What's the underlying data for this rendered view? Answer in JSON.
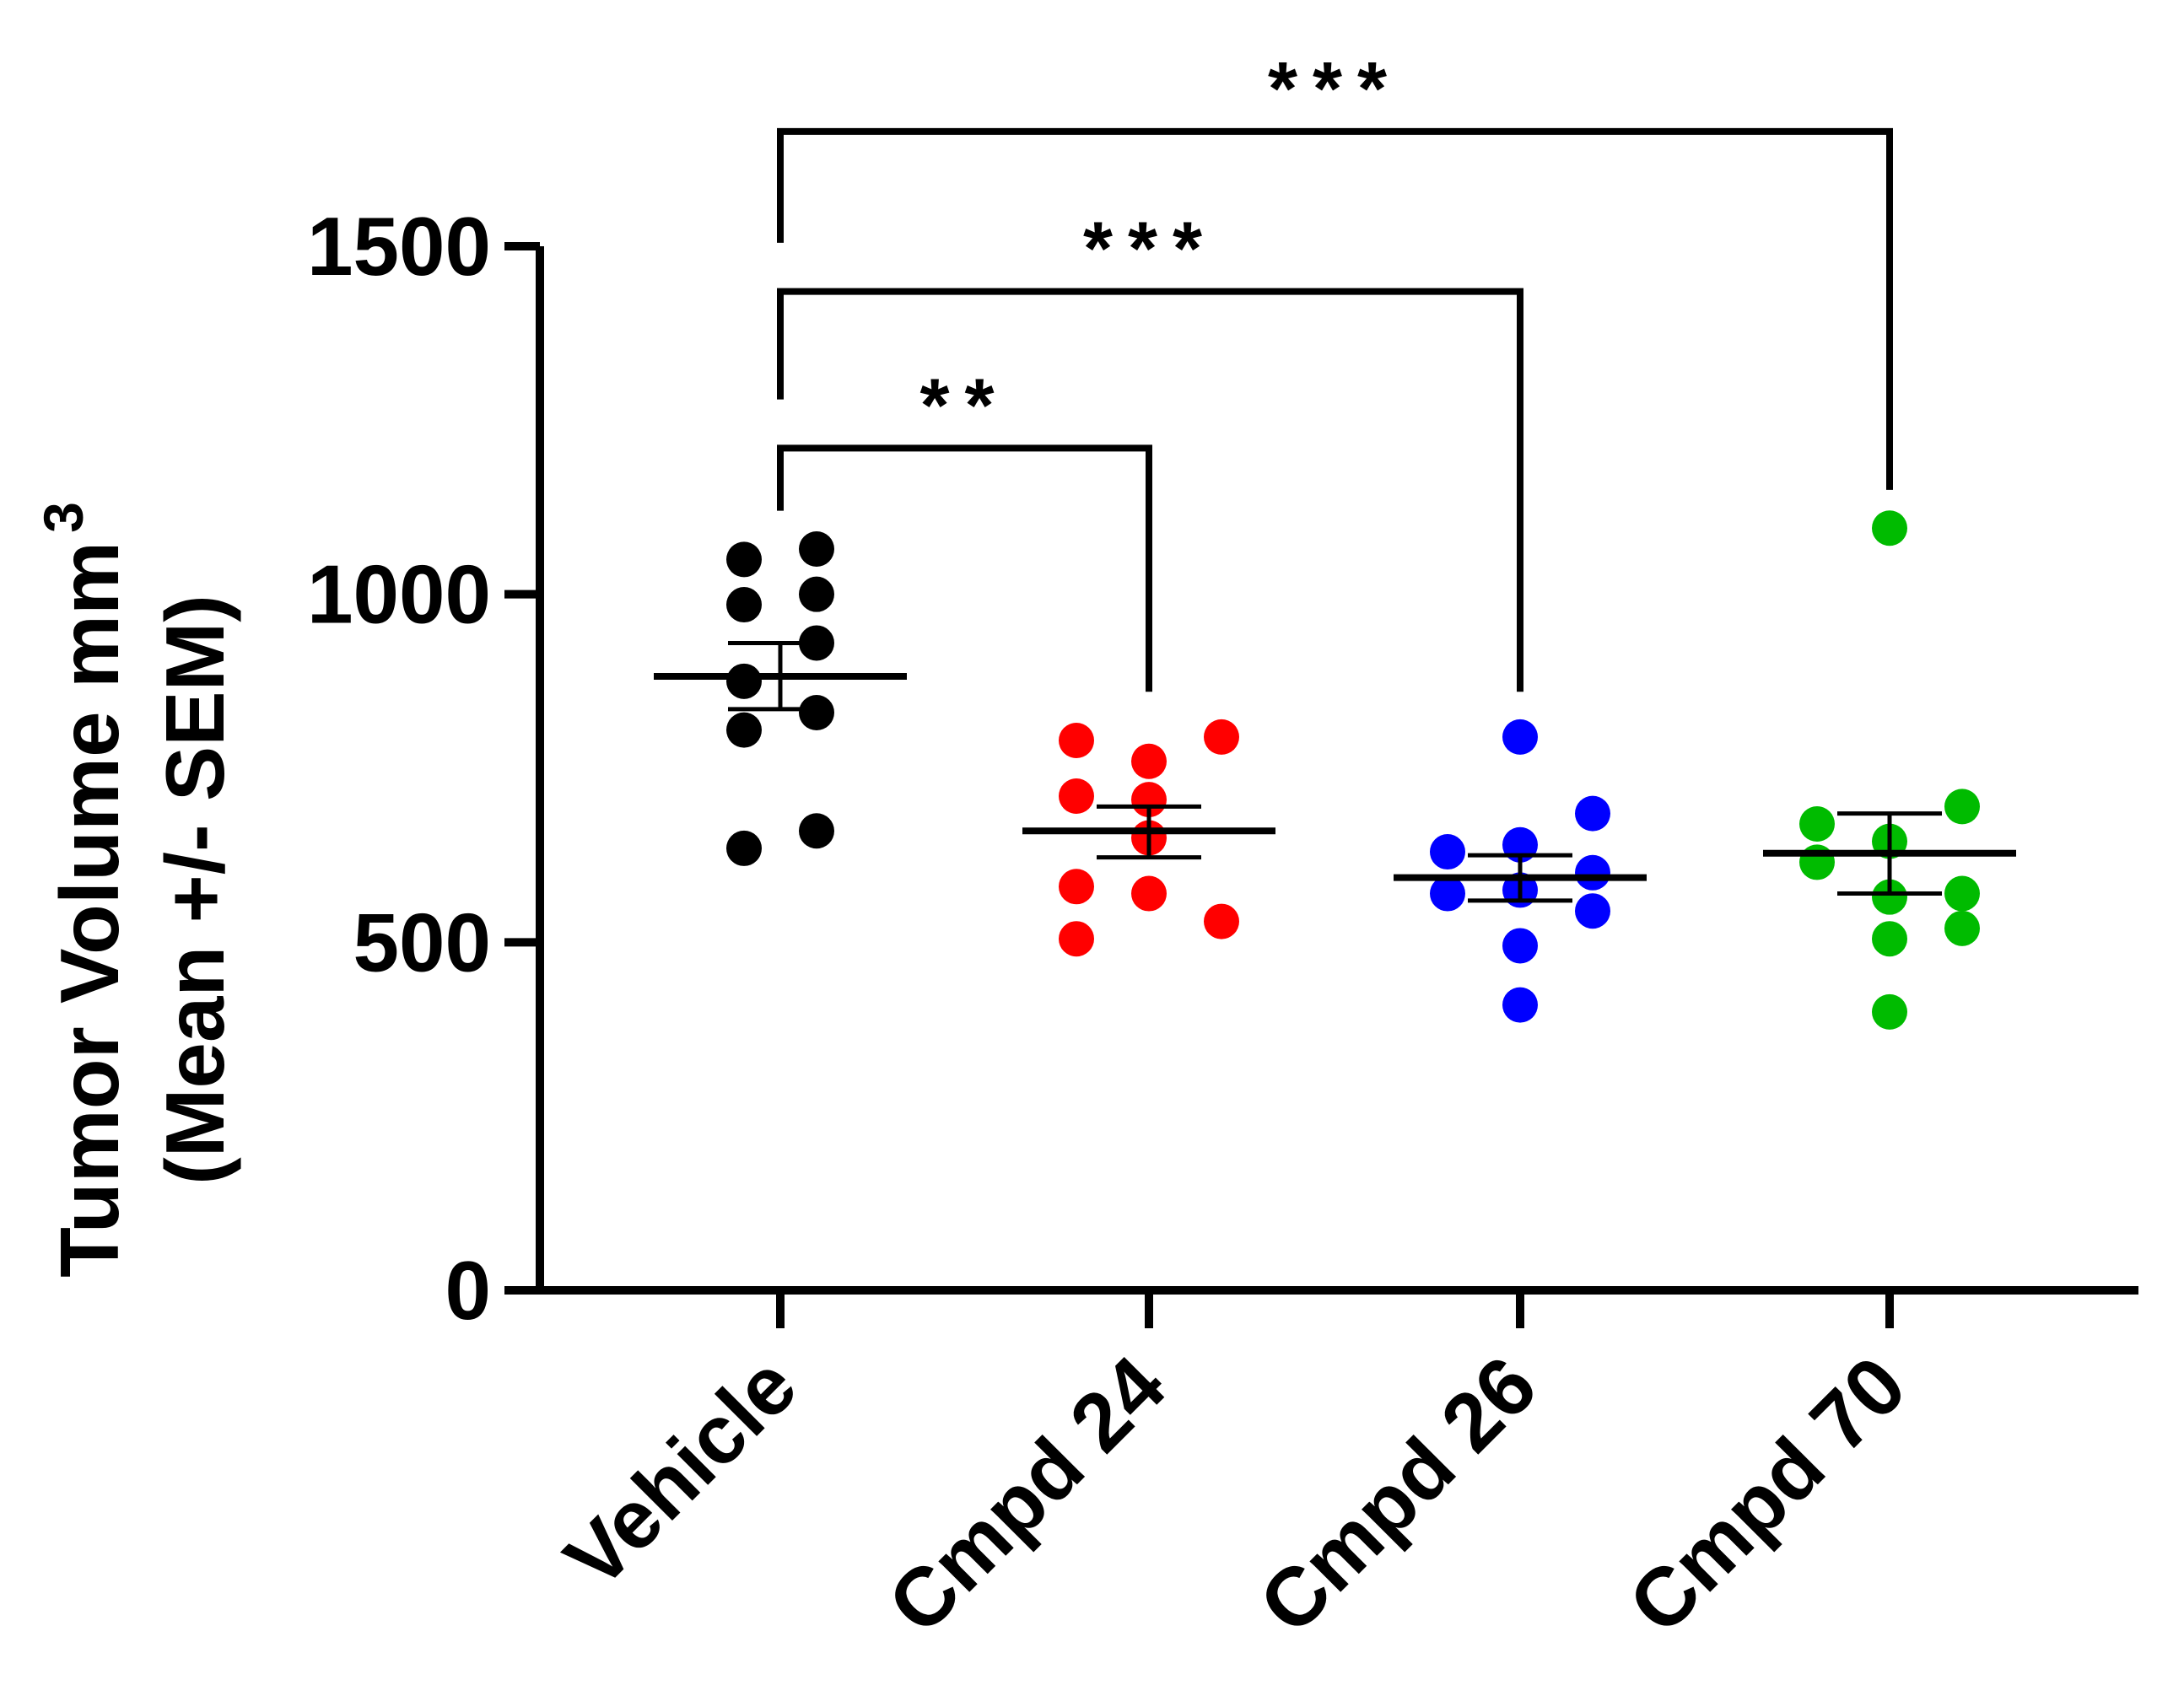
{
  "chart_data": {
    "type": "scatter",
    "subtype": "dot-plot-with-mean-sem",
    "title": "",
    "xlabel": "",
    "ylabel_line1": "Tumor Volume mm",
    "ylabel_sup": "3",
    "ylabel_line2": "(Mean +/- SEM)",
    "ylim": [
      0,
      1500
    ],
    "yticks": [
      0,
      500,
      1000,
      1500
    ],
    "ytick_labels": [
      "0",
      "500",
      "1000",
      "1500"
    ],
    "categories": [
      "Vehicle",
      "Cmpd 24",
      "Cmpd 26",
      "Cmpd 70"
    ],
    "series": [
      {
        "name": "Vehicle",
        "color": "#000000",
        "points": [
          {
            "offset": -1,
            "value": 1050
          },
          {
            "offset": 1,
            "value": 1065
          },
          {
            "offset": -1,
            "value": 985
          },
          {
            "offset": 1,
            "value": 1000
          },
          {
            "offset": 1,
            "value": 930
          },
          {
            "offset": -1,
            "value": 875
          },
          {
            "offset": 1,
            "value": 830
          },
          {
            "offset": -1,
            "value": 805
          },
          {
            "offset": -1,
            "value": 635
          },
          {
            "offset": 1,
            "value": 660
          }
        ],
        "mean": 882,
        "sem_upper": 930,
        "sem_lower": 835
      },
      {
        "name": "Cmpd 24",
        "color": "#ff0000",
        "points": [
          {
            "offset": -2,
            "value": 790
          },
          {
            "offset": 2,
            "value": 795
          },
          {
            "offset": 0,
            "value": 760
          },
          {
            "offset": -2,
            "value": 710
          },
          {
            "offset": 0,
            "value": 705
          },
          {
            "offset": 0,
            "value": 650
          },
          {
            "offset": -2,
            "value": 580
          },
          {
            "offset": 0,
            "value": 570
          },
          {
            "offset": 2,
            "value": 530
          },
          {
            "offset": -2,
            "value": 505
          }
        ],
        "mean": 660,
        "sem_upper": 695,
        "sem_lower": 622
      },
      {
        "name": "Cmpd 26",
        "color": "#0000ff",
        "points": [
          {
            "offset": 0,
            "value": 795
          },
          {
            "offset": 2,
            "value": 685
          },
          {
            "offset": 0,
            "value": 640
          },
          {
            "offset": -2,
            "value": 630
          },
          {
            "offset": 2,
            "value": 600
          },
          {
            "offset": 0,
            "value": 575
          },
          {
            "offset": -2,
            "value": 570
          },
          {
            "offset": 2,
            "value": 545
          },
          {
            "offset": 0,
            "value": 495
          },
          {
            "offset": 0,
            "value": 410
          }
        ],
        "mean": 593,
        "sem_upper": 625,
        "sem_lower": 560
      },
      {
        "name": "Cmpd 70",
        "color": "#00bb00",
        "points": [
          {
            "offset": 0,
            "value": 1095
          },
          {
            "offset": 2,
            "value": 695
          },
          {
            "offset": -2,
            "value": 670
          },
          {
            "offset": 0,
            "value": 645
          },
          {
            "offset": -2,
            "value": 615
          },
          {
            "offset": 0,
            "value": 565
          },
          {
            "offset": 2,
            "value": 570
          },
          {
            "offset": 2,
            "value": 520
          },
          {
            "offset": 0,
            "value": 505
          },
          {
            "offset": 0,
            "value": 400
          }
        ],
        "mean": 628,
        "sem_upper": 685,
        "sem_lower": 570
      }
    ],
    "annotations": [
      {
        "from": "Vehicle",
        "to": "Cmpd 24",
        "label": "**",
        "bracket_value": 1210,
        "left_leg_bottom": 1120,
        "right_leg_bottom": 860
      },
      {
        "from": "Vehicle",
        "to": "Cmpd 26",
        "label": "***",
        "bracket_value": 1435,
        "left_leg_bottom": 1280,
        "right_leg_bottom": 860
      },
      {
        "from": "Vehicle",
        "to": "Cmpd 70",
        "label": "***",
        "bracket_value": 1665,
        "left_leg_bottom": 1505,
        "right_leg_bottom": 1150
      }
    ]
  }
}
